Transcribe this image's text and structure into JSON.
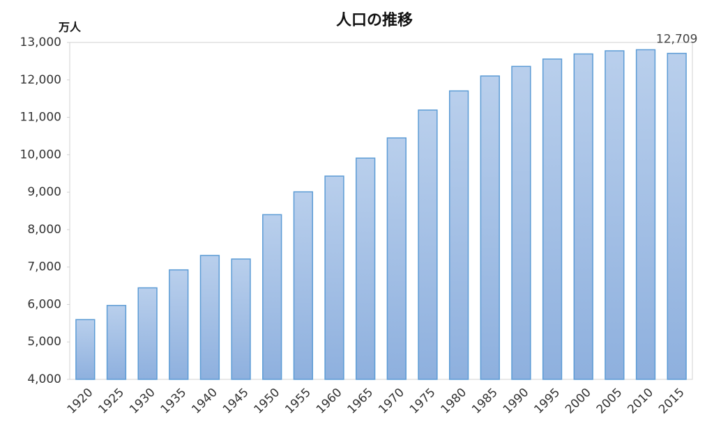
{
  "chart_data": {
    "type": "bar",
    "title": "人口の推移",
    "y_unit": "万人",
    "categories": [
      "1920",
      "1925",
      "1930",
      "1935",
      "1940",
      "1945",
      "1950",
      "1955",
      "1960",
      "1965",
      "1970",
      "1975",
      "1980",
      "1985",
      "1990",
      "1995",
      "2000",
      "2005",
      "2010",
      "2015"
    ],
    "values": [
      5596,
      5974,
      6445,
      6925,
      7310,
      7215,
      8400,
      9010,
      9430,
      9910,
      10450,
      11194,
      11706,
      12105,
      12361,
      12557,
      12693,
      12777,
      12806,
      12709
    ],
    "value_labels": [
      null,
      null,
      null,
      null,
      null,
      null,
      null,
      null,
      null,
      null,
      null,
      null,
      null,
      null,
      null,
      null,
      null,
      null,
      null,
      "12,709"
    ],
    "color": "#a7c2e6",
    "ylim": [
      4000,
      13000
    ],
    "yticks": [
      {
        "value": 4000,
        "label": "4,000"
      },
      {
        "value": 5000,
        "label": "5,000"
      },
      {
        "value": 6000,
        "label": "6,000"
      },
      {
        "value": 7000,
        "label": "7,000"
      },
      {
        "value": 8000,
        "label": "8,000"
      },
      {
        "value": 9000,
        "label": "9,000"
      },
      {
        "value": 10000,
        "label": "10,000"
      },
      {
        "value": 11000,
        "label": "11,000"
      },
      {
        "value": 12000,
        "label": "12,000"
      },
      {
        "value": 13000,
        "label": "13,000"
      }
    ],
    "grid": false
  }
}
